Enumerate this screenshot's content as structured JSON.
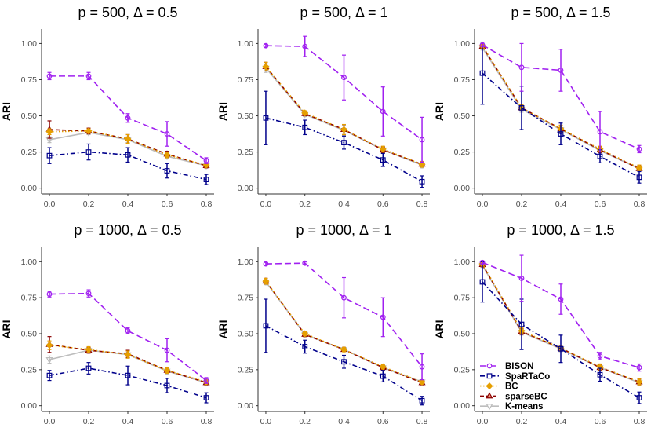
{
  "chart_data": {
    "type": "line",
    "layout": "2x3 grid",
    "ylabel": "ARI",
    "x": [
      0.0,
      0.2,
      0.4,
      0.6,
      0.8
    ],
    "x_tick_labels": [
      "0.0",
      "0.2",
      "0.4",
      "0.6",
      "0.8"
    ],
    "y_tick_labels": [
      "0.00",
      "0.25",
      "0.50",
      "0.75",
      "1.00"
    ],
    "ylim": [
      -0.04,
      1.1
    ],
    "xlim": [
      -0.04,
      0.84
    ],
    "legend": {
      "placement": "bottom-right of last panel",
      "entries": [
        "BISON",
        "SpaRTaCo",
        "BC",
        "sparseBC",
        "K-means"
      ]
    },
    "series_styles": [
      {
        "name": "BISON",
        "color": "#a020f0",
        "dash": "long-dash",
        "marker": "circle"
      },
      {
        "name": "SpaRTaCo",
        "color": "#00008b",
        "dash": "dash-dot",
        "marker": "square"
      },
      {
        "name": "BC",
        "color": "#e69f00",
        "dash": "dotted",
        "marker": "diamond"
      },
      {
        "name": "sparseBC",
        "color": "#8b0000",
        "dash": "dashed",
        "marker": "triangle-up"
      },
      {
        "name": "K-means",
        "color": "#bdbdbd",
        "dash": "solid",
        "marker": "triangle-down"
      }
    ],
    "panels": [
      {
        "title": "p = 500, Δ = 0.5",
        "series": [
          {
            "name": "BISON",
            "values": [
              0.775,
              0.775,
              0.485,
              0.375,
              0.19
            ],
            "err": [
              0.025,
              0.025,
              0.03,
              0.085,
              0.02
            ]
          },
          {
            "name": "SpaRTaCo",
            "values": [
              0.225,
              0.25,
              0.23,
              0.12,
              0.06
            ],
            "err": [
              0.055,
              0.055,
              0.05,
              0.05,
              0.035
            ]
          },
          {
            "name": "BC",
            "values": [
              0.39,
              0.395,
              0.34,
              0.23,
              0.16
            ],
            "err": [
              0.02,
              0.015,
              0.03,
              0.02,
              0.015
            ]
          },
          {
            "name": "sparseBC",
            "values": [
              0.405,
              0.395,
              0.34,
              0.235,
              0.155
            ],
            "err": [
              0.06,
              0.02,
              0.03,
              0.02,
              0.015
            ]
          },
          {
            "name": "K-means",
            "values": [
              0.335,
              0.385,
              0.335,
              0.22,
              0.155
            ],
            "err": [
              0.02,
              0.015,
              0.02,
              0.015,
              0.015
            ]
          }
        ]
      },
      {
        "title": "p = 500, Δ = 1",
        "series": [
          {
            "name": "BISON",
            "values": [
              0.985,
              0.98,
              0.765,
              0.53,
              0.335
            ],
            "err": [
              0.01,
              0.07,
              0.155,
              0.17,
              0.155
            ]
          },
          {
            "name": "SpaRTaCo",
            "values": [
              0.485,
              0.42,
              0.315,
              0.195,
              0.045
            ],
            "err": [
              0.185,
              0.05,
              0.045,
              0.045,
              0.04
            ]
          },
          {
            "name": "BC",
            "values": [
              0.84,
              0.52,
              0.405,
              0.27,
              0.165
            ],
            "err": [
              0.03,
              0.015,
              0.035,
              0.02,
              0.02
            ]
          },
          {
            "name": "sparseBC",
            "values": [
              0.84,
              0.515,
              0.405,
              0.265,
              0.165
            ],
            "err": [
              0.03,
              0.015,
              0.035,
              0.02,
              0.02
            ]
          },
          {
            "name": "K-means",
            "values": [
              0.83,
              0.51,
              0.4,
              0.265,
              0.16
            ],
            "err": [
              0.03,
              0.015,
              0.035,
              0.02,
              0.02
            ]
          }
        ]
      },
      {
        "title": "p = 500, Δ = 1.5",
        "series": [
          {
            "name": "BISON",
            "values": [
              0.99,
              0.835,
              0.815,
              0.39,
              0.27
            ],
            "err": [
              0.01,
              0.165,
              0.145,
              0.14,
              0.025
            ]
          },
          {
            "name": "SpaRTaCo",
            "values": [
              0.795,
              0.555,
              0.375,
              0.22,
              0.075
            ],
            "err": [
              0.215,
              0.15,
              0.075,
              0.045,
              0.04
            ]
          },
          {
            "name": "BC",
            "values": [
              0.985,
              0.555,
              0.41,
              0.27,
              0.14
            ],
            "err": [
              0.015,
              0.02,
              0.025,
              0.02,
              0.02
            ]
          },
          {
            "name": "sparseBC",
            "values": [
              0.98,
              0.555,
              0.41,
              0.265,
              0.135
            ],
            "err": [
              0.015,
              0.02,
              0.025,
              0.02,
              0.02
            ]
          },
          {
            "name": "K-means",
            "values": [
              0.97,
              0.545,
              0.405,
              0.26,
              0.135
            ],
            "err": [
              0.015,
              0.02,
              0.025,
              0.02,
              0.02
            ]
          }
        ]
      },
      {
        "title": "p = 1000, Δ = 0.5",
        "series": [
          {
            "name": "BISON",
            "values": [
              0.775,
              0.78,
              0.52,
              0.385,
              0.175
            ],
            "err": [
              0.02,
              0.025,
              0.02,
              0.08,
              0.02
            ]
          },
          {
            "name": "SpaRTaCo",
            "values": [
              0.21,
              0.26,
              0.21,
              0.14,
              0.055
            ],
            "err": [
              0.035,
              0.04,
              0.065,
              0.05,
              0.035
            ]
          },
          {
            "name": "BC",
            "values": [
              0.42,
              0.39,
              0.355,
              0.245,
              0.165
            ],
            "err": [
              0.03,
              0.02,
              0.025,
              0.02,
              0.015
            ]
          },
          {
            "name": "sparseBC",
            "values": [
              0.425,
              0.385,
              0.36,
              0.245,
              0.16
            ],
            "err": [
              0.055,
              0.02,
              0.025,
              0.02,
              0.015
            ]
          },
          {
            "name": "K-means",
            "values": [
              0.32,
              0.385,
              0.355,
              0.24,
              0.16
            ],
            "err": [
              0.025,
              0.02,
              0.025,
              0.02,
              0.015
            ]
          }
        ]
      },
      {
        "title": "p = 1000, Δ = 1",
        "series": [
          {
            "name": "BISON",
            "values": [
              0.985,
              0.99,
              0.75,
              0.615,
              0.27
            ],
            "err": [
              0.01,
              0.01,
              0.14,
              0.135,
              0.09
            ]
          },
          {
            "name": "SpaRTaCo",
            "values": [
              0.555,
              0.41,
              0.305,
              0.205,
              0.035
            ],
            "err": [
              0.185,
              0.045,
              0.045,
              0.04,
              0.03
            ]
          },
          {
            "name": "BC",
            "values": [
              0.865,
              0.5,
              0.39,
              0.27,
              0.165
            ],
            "err": [
              0.02,
              0.015,
              0.015,
              0.015,
              0.015
            ]
          },
          {
            "name": "sparseBC",
            "values": [
              0.865,
              0.495,
              0.39,
              0.265,
              0.16
            ],
            "err": [
              0.02,
              0.015,
              0.015,
              0.015,
              0.015
            ]
          },
          {
            "name": "K-means",
            "values": [
              0.86,
              0.495,
              0.39,
              0.265,
              0.165
            ],
            "err": [
              0.02,
              0.015,
              0.015,
              0.015,
              0.015
            ]
          }
        ]
      },
      {
        "title": "p = 1000, Δ = 1.5",
        "series": [
          {
            "name": "BISON",
            "values": [
              0.995,
              0.885,
              0.74,
              0.345,
              0.265
            ],
            "err": [
              0.01,
              0.16,
              0.105,
              0.025,
              0.025
            ]
          },
          {
            "name": "SpaRTaCo",
            "values": [
              0.86,
              0.565,
              0.395,
              0.215,
              0.055
            ],
            "err": [
              0.14,
              0.175,
              0.095,
              0.045,
              0.04
            ]
          },
          {
            "name": "BC",
            "values": [
              0.985,
              0.52,
              0.4,
              0.27,
              0.165
            ],
            "err": [
              0.015,
              0.02,
              0.02,
              0.02,
              0.02
            ]
          },
          {
            "name": "sparseBC",
            "values": [
              0.98,
              0.515,
              0.4,
              0.265,
              0.165
            ],
            "err": [
              0.015,
              0.02,
              0.02,
              0.02,
              0.02
            ]
          },
          {
            "name": "K-means",
            "values": [
              0.975,
              0.51,
              0.395,
              0.265,
              0.16
            ],
            "err": [
              0.015,
              0.02,
              0.02,
              0.02,
              0.02
            ]
          }
        ]
      }
    ]
  }
}
